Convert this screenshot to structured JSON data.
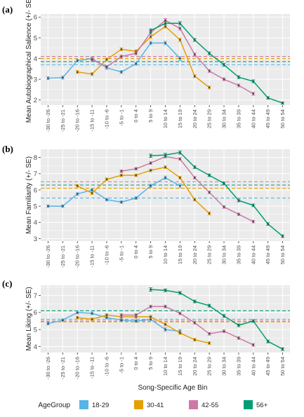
{
  "colors": {
    "18-29": "#56B4E9",
    "30-41": "#E69F00",
    "42-55": "#CC79A7",
    "56+": "#009E73",
    "panel_background": "#EBEBEB",
    "grid": "#FFFFFF",
    "point": "#444444"
  },
  "legend": {
    "title": "AgeGroup",
    "items": [
      "18-29",
      "30-41",
      "42-55",
      "56+"
    ]
  },
  "xaxis_label": "Song-Specific Age Bin",
  "chart_data": [
    {
      "type": "line",
      "panel_label": "(a)",
      "ylabel": "Mean Autobiographical Salience (+/- SE)",
      "ylim": [
        1.75,
        6.15
      ],
      "yticks": [
        2,
        3,
        4,
        5,
        6
      ],
      "grid": true,
      "categories": [
        "-30 to -26",
        "-25 to -21",
        "-20 to -16",
        "-15 to -11",
        "-10 to -6",
        "-5 to -1",
        "0 to 4",
        "5 to 9",
        "10 to 14",
        "15 to 19",
        "20 to 24",
        "25 to 29",
        "30 to 34",
        "35 to 39",
        "40 to 44",
        "45 to 49",
        "50 to 54"
      ],
      "hlines": [
        {
          "series": "18-29",
          "y": 3.7
        },
        {
          "series": "30-41",
          "y": 4.0
        },
        {
          "series": "42-55",
          "y": 4.1
        },
        {
          "series": "56+",
          "y": 3.85
        }
      ],
      "series": [
        {
          "name": "18-29",
          "values": [
            3.05,
            3.08,
            3.9,
            4.0,
            3.55,
            3.35,
            3.75,
            4.75,
            4.75,
            4.0,
            null,
            null,
            null,
            null,
            null,
            null,
            null
          ],
          "errors": [
            0.07,
            0.07,
            0.07,
            0.07,
            0.07,
            0.07,
            0.07,
            0.08,
            0.08,
            0.1,
            null,
            null,
            null,
            null,
            null,
            null,
            null
          ]
        },
        {
          "name": "30-41",
          "values": [
            null,
            null,
            3.35,
            3.25,
            3.95,
            4.45,
            4.35,
            5.05,
            5.55,
            4.9,
            3.15,
            2.6,
            null,
            null,
            null,
            null,
            null
          ],
          "errors": [
            null,
            null,
            0.07,
            0.07,
            0.07,
            0.07,
            0.07,
            0.08,
            0.08,
            0.08,
            0.07,
            0.07,
            null,
            null,
            null,
            null,
            null
          ]
        },
        {
          "name": "42-55",
          "values": [
            null,
            null,
            null,
            3.95,
            3.6,
            4.1,
            4.25,
            5.25,
            5.85,
            5.45,
            4.2,
            3.4,
            3.0,
            2.7,
            2.3,
            null,
            null
          ],
          "errors": [
            null,
            null,
            null,
            0.07,
            0.07,
            0.07,
            0.07,
            0.08,
            0.08,
            0.08,
            0.07,
            0.07,
            0.07,
            0.07,
            0.07,
            null,
            null
          ]
        },
        {
          "name": "56+",
          "values": [
            null,
            null,
            null,
            null,
            null,
            null,
            null,
            5.35,
            5.7,
            5.7,
            4.9,
            4.25,
            3.7,
            3.1,
            2.9,
            2.1,
            1.85
          ],
          "errors": [
            null,
            null,
            null,
            null,
            null,
            null,
            null,
            0.08,
            0.08,
            0.08,
            0.07,
            0.07,
            0.07,
            0.07,
            0.07,
            0.06,
            0.05
          ]
        }
      ]
    },
    {
      "type": "line",
      "panel_label": "(b)",
      "ylabel": "Mean Familiarity (+/- SE)",
      "ylim": [
        2.85,
        8.5
      ],
      "yticks": [
        3,
        4,
        5,
        6,
        7,
        8
      ],
      "grid": true,
      "categories": [
        "-30 to -26",
        "-25 to -21",
        "-20 to -16",
        "-15 to -11",
        "-10 to -6",
        "-5 to -1",
        "0 to 4",
        "5 to 9",
        "10 to 14",
        "15 to 19",
        "20 to 24",
        "25 to 29",
        "30 to 34",
        "35 to 39",
        "40 to 44",
        "45 to 49",
        "50 to 54"
      ],
      "hlines": [
        {
          "series": "18-29",
          "y": 5.5
        },
        {
          "series": "30-41",
          "y": 6.1
        },
        {
          "series": "42-55",
          "y": 6.5
        },
        {
          "series": "56+",
          "y": 6.3
        }
      ],
      "series": [
        {
          "name": "18-29",
          "values": [
            5.0,
            5.0,
            5.75,
            6.0,
            5.4,
            5.25,
            5.5,
            6.25,
            6.75,
            6.25,
            null,
            null,
            null,
            null,
            null,
            null,
            null
          ],
          "errors": [
            0.08,
            0.08,
            0.08,
            0.08,
            0.08,
            0.08,
            0.08,
            0.1,
            0.1,
            0.12,
            null,
            null,
            null,
            null,
            null,
            null,
            null
          ]
        },
        {
          "name": "30-41",
          "values": [
            null,
            null,
            6.25,
            5.8,
            6.65,
            6.9,
            6.9,
            7.2,
            7.4,
            6.75,
            5.4,
            4.55,
            null,
            null,
            null,
            null,
            null
          ],
          "errors": [
            null,
            null,
            0.08,
            0.08,
            0.08,
            0.08,
            0.08,
            0.08,
            0.08,
            0.08,
            0.08,
            0.09,
            null,
            null,
            null,
            null,
            null
          ]
        },
        {
          "name": "42-55",
          "values": [
            null,
            null,
            null,
            null,
            null,
            7.15,
            7.3,
            7.65,
            8.05,
            7.9,
            6.75,
            5.85,
            4.95,
            4.5,
            4.05,
            null,
            null
          ],
          "errors": [
            null,
            null,
            null,
            null,
            null,
            0.08,
            0.08,
            0.08,
            0.08,
            0.08,
            0.08,
            0.08,
            0.08,
            0.08,
            0.08,
            null,
            null
          ]
        },
        {
          "name": "56+",
          "values": [
            null,
            null,
            null,
            null,
            null,
            null,
            null,
            8.1,
            8.15,
            8.3,
            7.4,
            6.9,
            6.4,
            5.35,
            5.05,
            3.9,
            3.15
          ],
          "errors": [
            null,
            null,
            null,
            null,
            null,
            null,
            null,
            0.1,
            0.1,
            0.1,
            0.08,
            0.08,
            0.08,
            0.08,
            0.08,
            0.08,
            0.08
          ]
        }
      ]
    },
    {
      "type": "line",
      "panel_label": "(c)",
      "ylabel": "Mean Liking (+/- SE)",
      "ylim": [
        3.65,
        7.6
      ],
      "yticks": [
        4,
        5,
        6,
        7
      ],
      "grid": true,
      "categories": [
        "-30 to -26",
        "-25 to -21",
        "-20 to -16",
        "-15 to -11",
        "-10 to -6",
        "-5 to -1",
        "0 to 4",
        "5 to 9",
        "10 to 14",
        "15 to 19",
        "20 to 24",
        "25 to 29",
        "30 to 34",
        "35 to 39",
        "40 to 44",
        "45 to 49",
        "50 to 54"
      ],
      "hlines": [
        {
          "series": "18-29",
          "y": 5.6
        },
        {
          "series": "30-41",
          "y": 5.45
        },
        {
          "series": "42-55",
          "y": 5.5
        },
        {
          "series": "56+",
          "y": 6.1
        }
      ],
      "series": [
        {
          "name": "18-29",
          "values": [
            5.35,
            5.55,
            6.0,
            5.95,
            5.7,
            5.55,
            5.5,
            5.6,
            5.0,
            4.9,
            null,
            null,
            null,
            null,
            null,
            null,
            null
          ],
          "errors": [
            0.08,
            0.08,
            0.08,
            0.08,
            0.08,
            0.08,
            0.08,
            0.08,
            0.1,
            0.1,
            null,
            null,
            null,
            null,
            null,
            null,
            null
          ]
        },
        {
          "name": "30-41",
          "values": [
            null,
            null,
            5.7,
            5.6,
            5.85,
            5.75,
            5.75,
            5.75,
            5.3,
            4.8,
            4.4,
            4.2,
            null,
            null,
            null,
            null,
            null
          ],
          "errors": [
            null,
            null,
            0.08,
            0.08,
            0.08,
            0.08,
            0.08,
            0.08,
            0.08,
            0.08,
            0.08,
            0.08,
            null,
            null,
            null,
            null,
            null
          ]
        },
        {
          "name": "42-55",
          "values": [
            null,
            null,
            null,
            null,
            null,
            5.85,
            5.85,
            6.35,
            6.35,
            5.95,
            5.4,
            4.75,
            4.9,
            4.5,
            4.1,
            null,
            null
          ],
          "errors": [
            null,
            null,
            null,
            null,
            null,
            0.08,
            0.08,
            0.08,
            0.08,
            0.08,
            0.08,
            0.08,
            0.08,
            0.08,
            0.08,
            null,
            null
          ]
        },
        {
          "name": "56+",
          "values": [
            null,
            null,
            null,
            null,
            null,
            null,
            null,
            7.35,
            7.3,
            7.15,
            6.65,
            6.4,
            5.8,
            5.25,
            5.5,
            4.3,
            3.85
          ],
          "errors": [
            null,
            null,
            null,
            null,
            null,
            null,
            null,
            0.1,
            0.08,
            0.08,
            0.08,
            0.08,
            0.08,
            0.08,
            0.08,
            0.08,
            0.08
          ]
        }
      ]
    }
  ]
}
